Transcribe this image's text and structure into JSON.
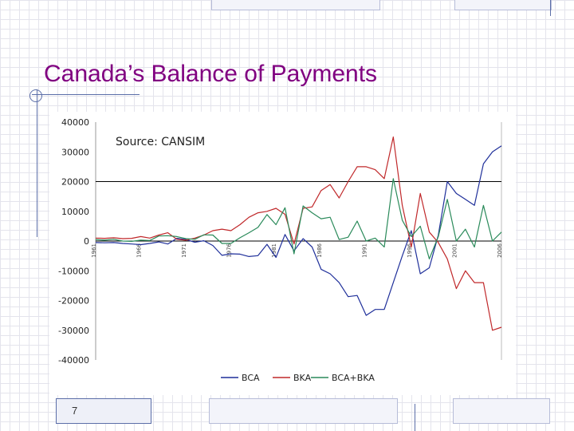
{
  "slide": {
    "title": "Canada’s Balance of Payments",
    "page_number": "7"
  },
  "chart_data": {
    "type": "line",
    "annotation": "Source: CANSIM",
    "ylim": [
      -40000,
      40000
    ],
    "yticks": [
      40000,
      30000,
      20000,
      10000,
      0,
      -10000,
      -20000,
      -30000,
      -40000
    ],
    "xlim": [
      1961,
      2006
    ],
    "xticks": [
      1961,
      1966,
      1971,
      1976,
      1981,
      1986,
      1991,
      1996,
      2001,
      2006
    ],
    "x_tick_labels": [
      "1961",
      "1966",
      "1971",
      "1976",
      "1981",
      "1986",
      "1991",
      "1996",
      "2001",
      "2006"
    ],
    "grid": "horizontal lines at y = 0 and y = 20000",
    "legend_position": "bottom",
    "colors": {
      "BCA": "#1f2f9a",
      "BKA": "#c0282a",
      "BCA+BKA": "#2a8a5a"
    },
    "years": [
      1961,
      1962,
      1963,
      1964,
      1965,
      1966,
      1967,
      1968,
      1969,
      1970,
      1971,
      1972,
      1973,
      1974,
      1975,
      1976,
      1977,
      1978,
      1979,
      1980,
      1981,
      1982,
      1983,
      1984,
      1985,
      1986,
      1987,
      1988,
      1989,
      1990,
      1991,
      1992,
      1993,
      1994,
      1995,
      1996,
      1997,
      1998,
      1999,
      2000,
      2001,
      2002,
      2003,
      2004,
      2005,
      2006
    ],
    "series": [
      {
        "name": "BCA",
        "values": [
          -500,
          -600,
          -500,
          -800,
          -1000,
          -1200,
          -800,
          -300,
          -1000,
          900,
          500,
          -400,
          100,
          -1500,
          -4800,
          -4300,
          -4400,
          -5200,
          -4900,
          -1100,
          -5500,
          2200,
          -3300,
          800,
          -2000,
          -9500,
          -11000,
          -14000,
          -18700,
          -18300,
          -25000,
          -23000,
          -23000,
          -14000,
          -5000,
          3500,
          -11000,
          -9000,
          2000,
          20000,
          16000,
          14000,
          12000,
          26000,
          30000,
          32000
        ]
      },
      {
        "name": "BKA",
        "values": [
          1000,
          900,
          1100,
          800,
          900,
          1500,
          1000,
          2000,
          2800,
          600,
          300,
          1000,
          2000,
          3500,
          4000,
          3500,
          5500,
          8000,
          9500,
          10000,
          11000,
          9000,
          -1000,
          11000,
          11500,
          17000,
          19000,
          14500,
          20000,
          25000,
          25000,
          24000,
          21000,
          35000,
          12000,
          -2000,
          16000,
          3000,
          -500,
          -6000,
          -16000,
          -10000,
          -14000,
          -14000,
          -30000,
          -29000
        ]
      },
      {
        "name": "BCA+BKA",
        "values": [
          500,
          300,
          600,
          0,
          -100,
          300,
          200,
          1700,
          1800,
          1500,
          800,
          600,
          2100,
          2000,
          -800,
          -800,
          1100,
          2800,
          4600,
          8900,
          5500,
          11200,
          -4300,
          11800,
          9500,
          7500,
          8000,
          500,
          1300,
          6700,
          0,
          1000,
          -2000,
          21000,
          7000,
          1500,
          5000,
          -6000,
          1500,
          14000,
          0,
          4000,
          -2000,
          12000,
          0,
          3000
        ]
      }
    ]
  }
}
